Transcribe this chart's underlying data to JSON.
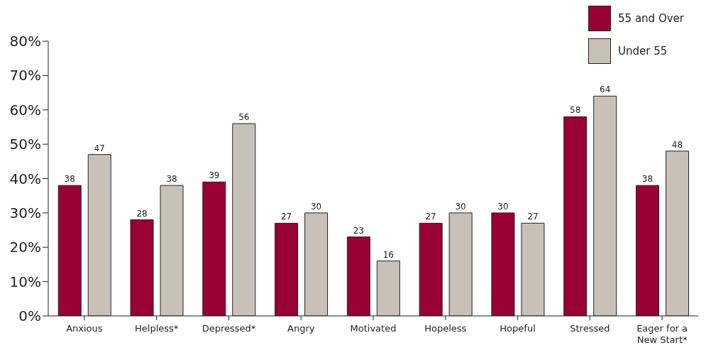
{
  "chart_data": {
    "type": "bar",
    "categories": [
      "Anxious",
      "Helpless*",
      "Depressed*",
      "Angry",
      "Motivated",
      "Hopeless",
      "Hopeful",
      "Stressed",
      "Eager for a New Start*"
    ],
    "series": [
      {
        "name": "55 and Over",
        "color": "#990033",
        "values": [
          38,
          28,
          39,
          27,
          23,
          27,
          30,
          58,
          38
        ]
      },
      {
        "name": "Under 55",
        "color": "#c9c1b7",
        "values": [
          47,
          38,
          56,
          30,
          16,
          30,
          27,
          64,
          48
        ]
      }
    ],
    "ylim": [
      0,
      80
    ],
    "yticks": [
      {
        "value": 0,
        "label": "0%"
      },
      {
        "value": 10,
        "label": "10%"
      },
      {
        "value": 20,
        "label": "20%"
      },
      {
        "value": 30,
        "label": "30%"
      },
      {
        "value": 40,
        "label": "40%"
      },
      {
        "value": 50,
        "label": "50%"
      },
      {
        "value": 60,
        "label": "60%"
      },
      {
        "value": 70,
        "label": "70%"
      },
      {
        "value": 80,
        "label": "80%"
      }
    ],
    "data_labels": true,
    "grid": false,
    "legend": "top right"
  }
}
